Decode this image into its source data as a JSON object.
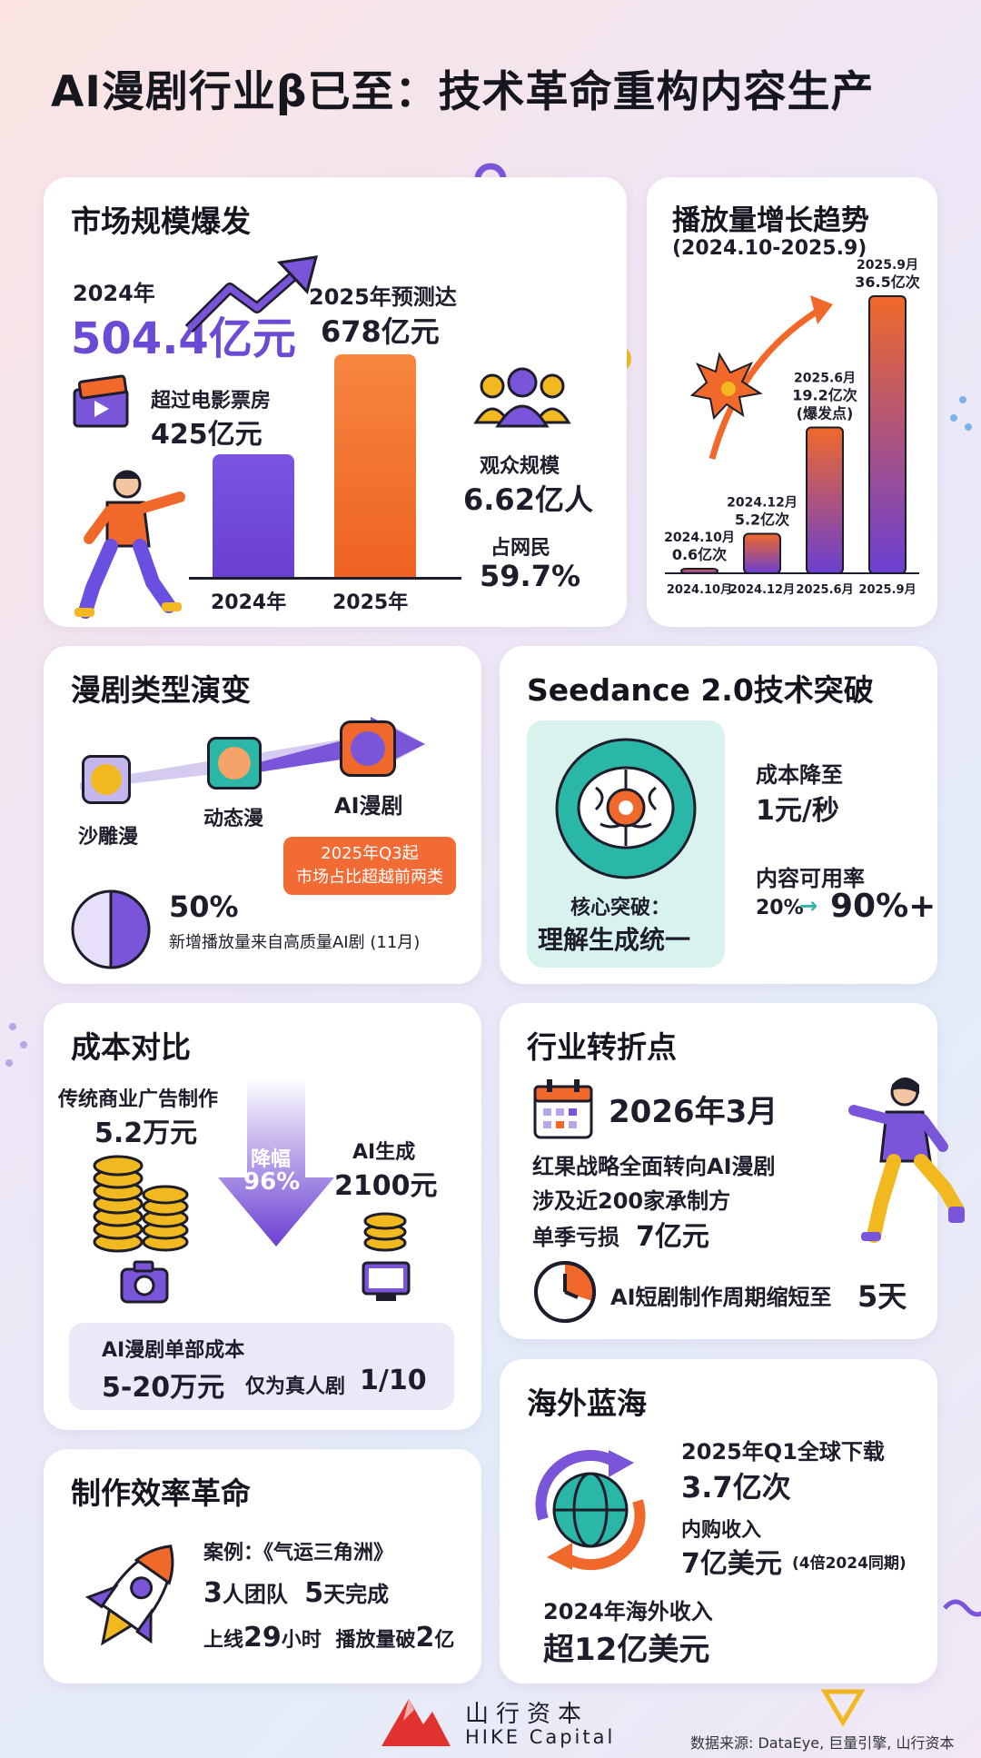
{
  "title": "AI漫剧行业β已至：技术革命重构内容生产",
  "market": {
    "title": "市场规模爆发",
    "year_2024_label": "2024年",
    "value_2024": "504.4亿元",
    "movie_label": "超过电影票房",
    "movie_value": "425亿元",
    "forecast_label": "2025年预测达",
    "forecast_value": "678亿元",
    "bar_labels": [
      "2024年",
      "2025年"
    ],
    "audience_label": "观众规模",
    "audience_value": "6.62亿人",
    "netizen_label": "占网民",
    "netizen_value": "59.7%"
  },
  "plays": {
    "title": "播放量增长趋势",
    "subtitle": "(2024.10-2025.9)",
    "chart_data": {
      "type": "bar",
      "categories": [
        "2024.10月",
        "2024.12月",
        "2025.6月",
        "2025.9月"
      ],
      "values": [
        0.6,
        5.2,
        19.2,
        36.5
      ],
      "unit": "亿次",
      "data_labels": [
        [
          "2024.10月",
          "0.6亿次"
        ],
        [
          "2024.12月",
          "5.2亿次"
        ],
        [
          "2025.6月",
          "19.2亿次",
          "(爆发点)"
        ],
        [
          "2025.9月",
          "36.5亿次"
        ]
      ],
      "ylim": [
        0,
        36.5
      ],
      "grid": false
    }
  },
  "genre": {
    "title": "漫剧类型演变",
    "types": [
      "沙雕漫",
      "动态漫",
      "AI漫剧"
    ],
    "chip_line1": "2025年Q3起",
    "chip_line2": "市场占比超越前两类",
    "pie_value": "50%",
    "pie_fraction": 0.5,
    "pie_desc": "新增播放量来自高质量AI剧 (11月)"
  },
  "seedance": {
    "title": "Seedance 2.0技术突破",
    "core_label": "核心突破：",
    "core_value": "理解生成统一",
    "cost_label": "成本降至",
    "cost_value": "1元/秒",
    "usable_label": "内容可用率",
    "usable_from": "20%",
    "usable_arrow": "→",
    "usable_to": "90%+"
  },
  "cost": {
    "title": "成本对比",
    "trad_label": "传统商业广告制作",
    "trad_value": "5.2万元",
    "drop_label": "降幅",
    "drop_value": "96%",
    "ai_label": "AI生成",
    "ai_value": "2100元",
    "unit_label": "AI漫剧单部成本",
    "unit_value": "5-20万元",
    "unit_note_prefix": "仅为真人剧",
    "unit_note_value": "1/10"
  },
  "turning": {
    "title": "行业转折点",
    "date": "2026年3月",
    "line1": "红果战略全面转向AI漫剧",
    "line2": "涉及近200家承制方",
    "line3_prefix": "单季亏损",
    "line3_value": "7亿元",
    "cycle_prefix": "AI短剧制作周期缩短至",
    "cycle_value": "5天"
  },
  "efficiency": {
    "title": "制作效率革命",
    "case": "案例：《气运三角洲》",
    "team_num": "3",
    "team_text": "人团队",
    "days_num": "5",
    "days_text": "天完成",
    "online_prefix": "上线",
    "online_num": "29",
    "online_text": "小时",
    "plays_prefix": "播放量破",
    "plays_num": "2",
    "plays_text": "亿"
  },
  "overseas": {
    "title": "海外蓝海",
    "download_label": "2025年Q1全球下载",
    "download_value": "3.7亿次",
    "iap_label": "内购收入",
    "iap_value": "7亿美元",
    "iap_note": "(4倍2024同期)",
    "income_label": "2024年海外收入",
    "income_value": "超12亿美元"
  },
  "footer": {
    "brand_cn": "山行资本",
    "brand_en": "HIKE Capital",
    "source": "数据来源: DataEye, 巨量引擎, 山行资本"
  },
  "colors": {
    "purple": "#6b4ad6",
    "orange": "#f0692a",
    "teal": "#2bb7a7",
    "gold": "#f2b81f"
  }
}
